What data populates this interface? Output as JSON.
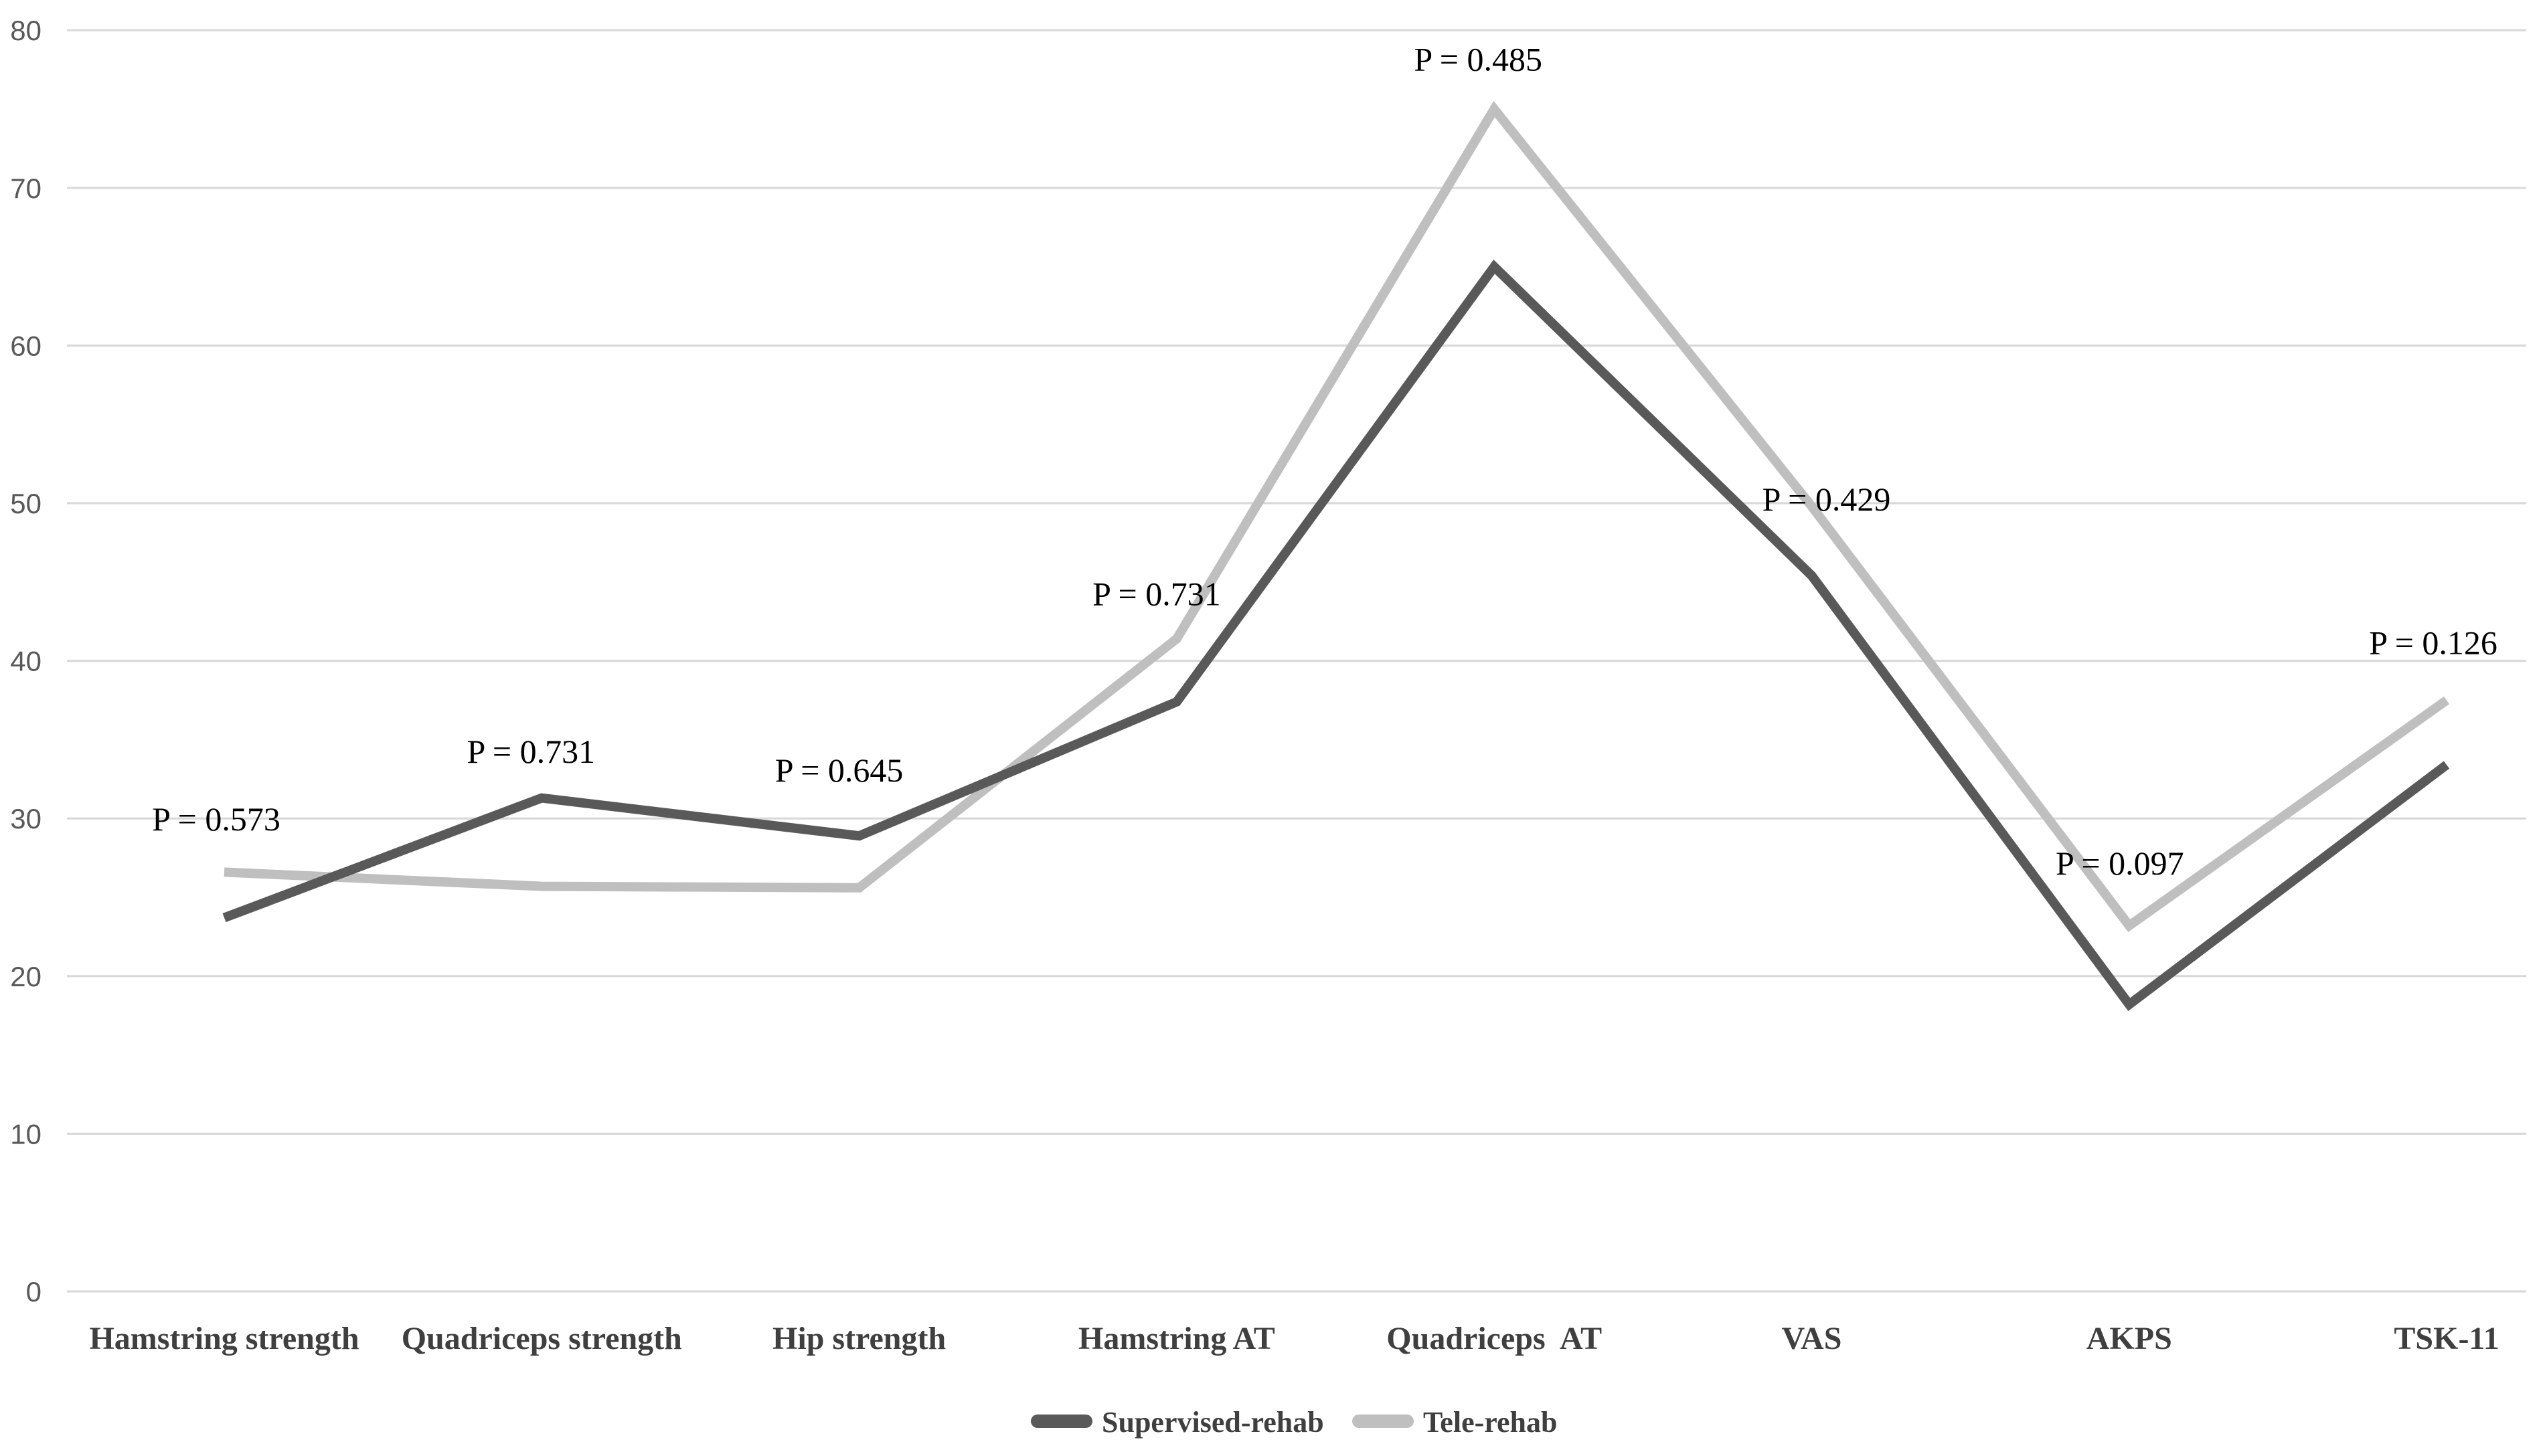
{
  "chart_data": {
    "type": "line",
    "title": "",
    "xlabel": "",
    "ylabel": "",
    "categories": [
      "Hamstring strength",
      "Quadriceps strength",
      "Hip strength",
      "Hamstring AT",
      "Quadriceps  AT",
      "VAS",
      "AKPS",
      "TSK-11"
    ],
    "series": [
      {
        "name": "Supervised-rehab",
        "color": "#595959",
        "values": [
          23.7,
          31.3,
          28.9,
          37.4,
          65.0,
          45.4,
          18.2,
          33.4
        ]
      },
      {
        "name": "Tele-rehab",
        "color": "#BFBFBF",
        "values": [
          26.6,
          25.7,
          25.6,
          41.4,
          75.0,
          49.8,
          23.2,
          37.5
        ]
      }
    ],
    "p_value_labels": [
      {
        "text": "P = 0.573",
        "at_category": "Hamstring strength",
        "y": 30.0,
        "dx": -6
      },
      {
        "text": "P = 0.731",
        "at_category": "Quadriceps strength",
        "y": 34.3,
        "dx": -8
      },
      {
        "text": "P = 0.645",
        "at_category": "Hip strength",
        "y": 33.1,
        "dx": -15
      },
      {
        "text": "P = 0.731",
        "at_category": "Hamstring AT",
        "y": 44.3,
        "dx": -15
      },
      {
        "text": "P = 0.485",
        "at_category": "Quadriceps  AT",
        "y": 78.2,
        "dx": -12
      },
      {
        "text": "P = 0.429",
        "at_category": "VAS",
        "y": 50.3,
        "dx": 11
      },
      {
        "text": "P = 0.097",
        "at_category": "AKPS",
        "y": 27.2,
        "dx": -7
      },
      {
        "text": "P = 0.126",
        "at_category": "TSK-11",
        "y": 41.2,
        "dx": -10
      }
    ],
    "y_axis": {
      "min": 0,
      "max": 80,
      "ticks": [
        0,
        10,
        20,
        30,
        40,
        50,
        60,
        70,
        80
      ]
    },
    "grid": "horizontal-only",
    "legend": {
      "position": "bottom-center",
      "entries": [
        "Supervised-rehab",
        "Tele-rehab"
      ]
    },
    "colors": {
      "gridline": "#D9D9D9",
      "tick_text": "#595959",
      "label_text": "#3F3F3F",
      "p_text": "#000000",
      "background": "#FFFFFF"
    }
  }
}
